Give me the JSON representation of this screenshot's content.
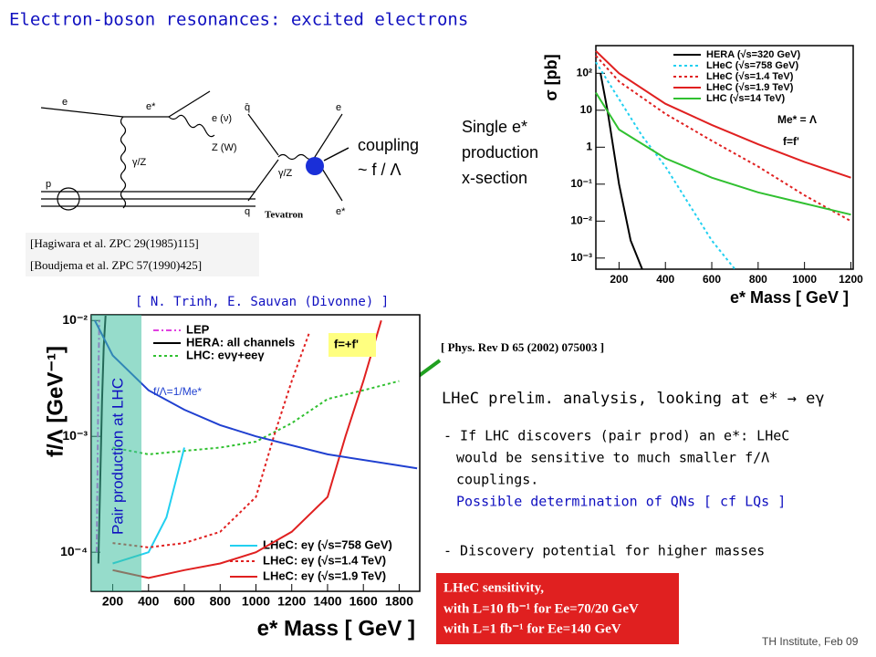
{
  "slide": {
    "title": "Electron-boson resonances: excited electrons",
    "coupling": [
      "coupling",
      "~ f / Λ"
    ],
    "single": [
      "Single e*",
      "production",
      "x-section"
    ],
    "refs": [
      "[Hagiwara et al. ZPC 29(1985)115]",
      "[Boudjema et al. ZPC 57(1990)425]"
    ],
    "authors": "[ N. Trinh, E. Sauvan (Divonne) ]",
    "phys": "[ Phys. Rev D 65 (2002) 075003 ]",
    "analysis": "LHeC prelim. analysis, looking at e* → eγ",
    "bullet1": [
      "- If LHC discovers (pair prod) an e*: LHeC",
      "would be sensitive to much smaller f/Λ",
      "couplings."
    ],
    "bullet1b": "Possible determination of QNs [ cf LQs ]",
    "bullet2": "- Discovery potential for higher masses",
    "sensitivity": [
      "LHeC sensitivity,",
      "with L=10 fb⁻¹ for Ee=70/20 GeV",
      "with L=1 fb⁻¹ for Ee=140 GeV"
    ],
    "pair": "Pair production at LHC",
    "footer": "TH Institute, Feb 09"
  },
  "diagrams": {
    "ep": [
      "e",
      "e*",
      "e (ν)",
      "γ/Z",
      "Z (W)",
      "p"
    ],
    "qq": [
      "q̄",
      "q",
      "e",
      "e*",
      "γ/Z",
      "Tevatron"
    ]
  },
  "chart_data": [
    {
      "type": "line",
      "ylabel": "σ [pb]",
      "xlabel": "e* Mass [ GeV ]",
      "log_y": true,
      "xlim": [
        100,
        1210
      ],
      "xticks": [
        200,
        400,
        600,
        800,
        1000,
        1200
      ],
      "ylim": [
        0.0005,
        560
      ],
      "yticks": [
        {
          "value": 0.001,
          "label": "10⁻³"
        },
        {
          "value": 0.01,
          "label": "10⁻²"
        },
        {
          "value": 0.1,
          "label": "10⁻¹"
        },
        1,
        10,
        {
          "value": 100,
          "label": "10²"
        }
      ],
      "annotations": [
        "Me* = Λ",
        "f=f'"
      ],
      "series": [
        {
          "name": "HERA (√s=320 GeV)",
          "color": "#000000",
          "style": "solid",
          "x": [
            120,
            150,
            200,
            250,
            300
          ],
          "values": [
            100,
            10,
            0.1,
            0.003,
            0.0005
          ]
        },
        {
          "name": "LHeC (√s=758 GeV)",
          "color": "#22d0f0",
          "style": "dotted",
          "x": [
            100,
            200,
            300,
            400,
            500,
            600,
            700
          ],
          "values": [
            200,
            20,
            2,
            0.3,
            0.03,
            0.003,
            0.0005
          ]
        },
        {
          "name": "LHeC (√s=1.4 TeV)",
          "color": "#e02020",
          "style": "dotted",
          "x": [
            100,
            200,
            400,
            600,
            800,
            1000,
            1200
          ],
          "values": [
            300,
            60,
            8,
            1.5,
            0.3,
            0.05,
            0.01
          ]
        },
        {
          "name": "LHeC (√s=1.9 TeV)",
          "color": "#e02020",
          "style": "solid",
          "x": [
            100,
            200,
            400,
            600,
            800,
            1000,
            1200
          ],
          "values": [
            400,
            100,
            15,
            4,
            1.2,
            0.4,
            0.15
          ]
        },
        {
          "name": "LHC (√s=14 TeV)",
          "color": "#30c030",
          "style": "solid",
          "x": [
            100,
            200,
            400,
            600,
            800,
            1000,
            1200
          ],
          "values": [
            30,
            3,
            0.5,
            0.15,
            0.06,
            0.03,
            0.015
          ]
        }
      ]
    },
    {
      "type": "line",
      "ylabel": "f/Λ [GeV⁻¹]",
      "xlabel": "e* Mass [ GeV ]",
      "log_y": true,
      "xlim": [
        80,
        1915
      ],
      "xticks": [
        200,
        400,
        600,
        800,
        1000,
        1200,
        1400,
        1600,
        1800
      ],
      "ylim": [
        4.6e-05,
        0.0112
      ],
      "yticks": [
        {
          "value": 0.0001,
          "label": "10⁻⁴"
        },
        {
          "value": 0.001,
          "label": "10⁻³"
        },
        {
          "value": 0.01,
          "label": "10⁻²"
        }
      ],
      "annotations": [
        "f=+f'",
        "f/Λ=1/Me*"
      ],
      "series": [
        {
          "name": "LEP",
          "color": "#e040e0",
          "style": "dashdot",
          "x": [
            110,
            115,
            120,
            125
          ],
          "values": [
            0.0001,
            0.0005,
            0.003,
            0.01
          ]
        },
        {
          "name": "HERA: all channels",
          "color": "#000000",
          "style": "solid",
          "x": [
            120,
            130,
            140,
            150,
            160
          ],
          "values": [
            8e-05,
            0.0004,
            0.002,
            0.006,
            0.011
          ]
        },
        {
          "name": "LHC: eνγ+eeγ",
          "color": "#30c030",
          "style": "dotted",
          "x": [
            200,
            400,
            600,
            800,
            1000,
            1200,
            1400,
            1600,
            1800
          ],
          "values": [
            0.0008,
            0.0007,
            0.00075,
            0.0008,
            0.0009,
            0.0013,
            0.0021,
            0.0025,
            0.003
          ]
        },
        {
          "name": "LHeC: eγ (√s=758 GeV)",
          "color": "#22d0f0",
          "style": "solid",
          "x": [
            200,
            400,
            500,
            550,
            600
          ],
          "values": [
            8e-05,
            0.0001,
            0.0002,
            0.0004,
            0.0008
          ]
        },
        {
          "name": "LHeC: eγ (√s=1.4 TeV)",
          "color": "#e02020",
          "style": "dotted",
          "x": [
            200,
            400,
            600,
            800,
            1000,
            1100,
            1200,
            1300
          ],
          "values": [
            0.00012,
            0.00011,
            0.00012,
            0.00015,
            0.0003,
            0.001,
            0.003,
            0.008
          ]
        },
        {
          "name": "LHeC: eγ (√s=1.9 TeV)",
          "color": "#e02020",
          "style": "solid",
          "x": [
            200,
            400,
            600,
            800,
            1000,
            1200,
            1400,
            1500,
            1600,
            1700
          ],
          "values": [
            7e-05,
            6e-05,
            7e-05,
            8e-05,
            0.0001,
            0.00015,
            0.0003,
            0.001,
            0.003,
            0.01
          ]
        },
        {
          "color": "#2040d0",
          "style": "solid",
          "x": [
            100,
            200,
            400,
            600,
            800,
            1000,
            1400,
            1900
          ],
          "values": [
            0.01,
            0.005,
            0.0025,
            0.0017,
            0.00125,
            0.001,
            0.0007,
            0.00053
          ]
        }
      ]
    }
  ]
}
